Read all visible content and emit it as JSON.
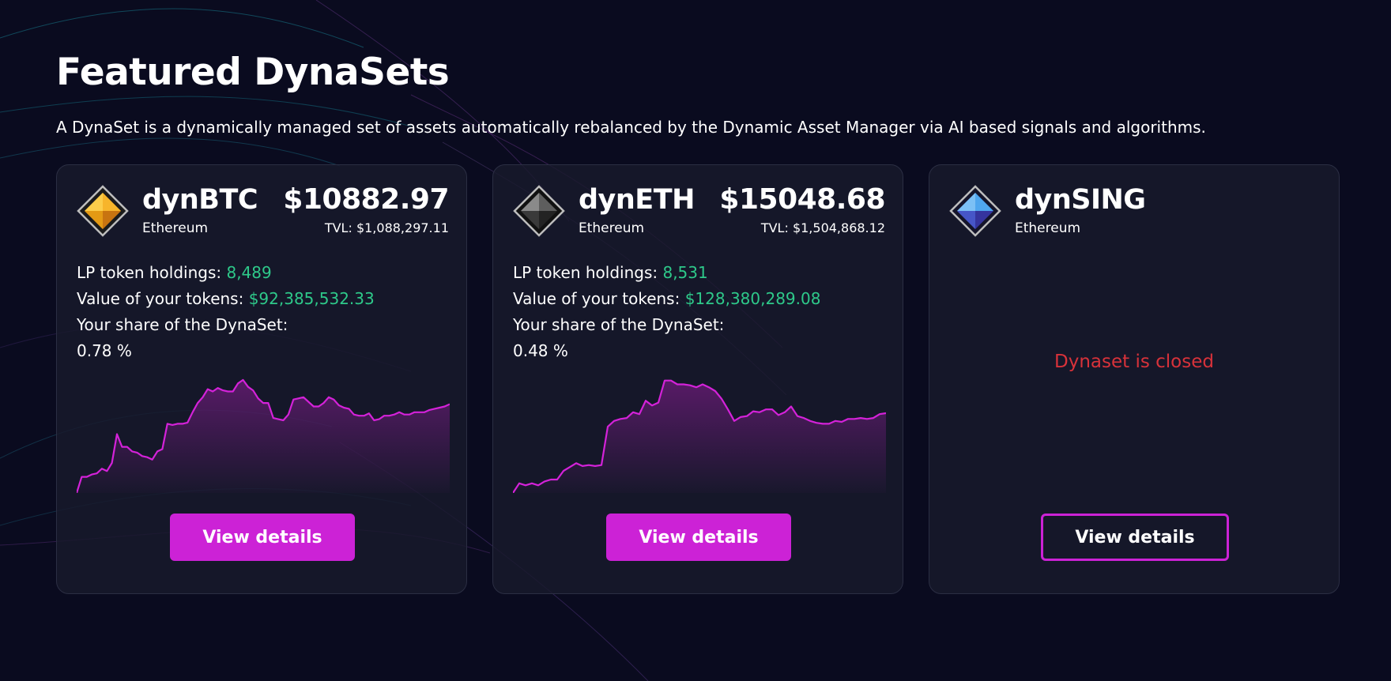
{
  "header": {
    "title": "Featured DynaSets",
    "subtitle": "A DynaSet is a dynamically managed set of assets automatically rebalanced by the Dynamic Asset Manager via AI based signals and algorithms."
  },
  "accent_color": "#cc22d6",
  "positive_color": "#2ec98a",
  "closed_color": "#d8323a",
  "cards": [
    {
      "name": "dynBTC",
      "network": "Ethereum",
      "price": "$10882.97",
      "tvl": "TVL: $1,088,297.11",
      "lp_label": "LP token holdings:",
      "lp_value": "8,489",
      "value_label": "Value of your tokens:",
      "value_value": "$92,385,532.33",
      "share_label": "Your share of the DynaSet:",
      "share_value": "0.78 %",
      "button_label": "View details",
      "icon": "gold-diamond-icon",
      "icon_colors": [
        "#f7b52b",
        "#e18a10"
      ]
    },
    {
      "name": "dynETH",
      "network": "Ethereum",
      "price": "$15048.68",
      "tvl": "TVL: $1,504,868.12",
      "lp_label": "LP token holdings:",
      "lp_value": "8,531",
      "value_label": "Value of your tokens:",
      "value_value": "$128,380,289.08",
      "share_label": "Your share of the DynaSet:",
      "share_value": "0.48 %",
      "button_label": "View details",
      "icon": "silver-diamond-icon",
      "icon_colors": [
        "#6d6d6d",
        "#2a2a2a"
      ]
    },
    {
      "name": "dynSING",
      "network": "Ethereum",
      "status": "Dynaset is closed",
      "button_label": "View details",
      "icon": "blue-diamond-icon",
      "icon_colors": [
        "#4fa6ee",
        "#3a3ab4"
      ]
    }
  ],
  "chart_data": [
    {
      "type": "area",
      "series_of": "dynBTC",
      "values": [
        0,
        14,
        14,
        16,
        17,
        21,
        19,
        26,
        51,
        40,
        40,
        36,
        35,
        32,
        31,
        29,
        36,
        38,
        60,
        59,
        60,
        60,
        61,
        70,
        78,
        83,
        90,
        88,
        91,
        89,
        88,
        88,
        95,
        98,
        92,
        89,
        82,
        78,
        78,
        65,
        64,
        63,
        68,
        81,
        82,
        83,
        79,
        75,
        75,
        78,
        83,
        81,
        76,
        74,
        73,
        68,
        67,
        67,
        69,
        63,
        64,
        67,
        67,
        68,
        70,
        68,
        68,
        70,
        70,
        70,
        72,
        73,
        74,
        75,
        77
      ],
      "ylim": [
        0,
        100
      ],
      "line_color": "#d422d9"
    },
    {
      "type": "area",
      "series_of": "dynETH",
      "values": [
        0,
        10,
        8,
        10,
        8,
        12,
        14,
        14,
        23,
        27,
        31,
        28,
        29,
        28,
        29,
        69,
        75,
        77,
        78,
        84,
        82,
        96,
        91,
        94,
        117,
        117,
        113,
        113,
        112,
        110,
        113,
        110,
        106,
        98,
        87,
        75,
        79,
        80,
        85,
        84,
        87,
        87,
        81,
        84,
        90,
        80,
        78,
        75,
        73,
        72,
        72,
        75,
        74,
        77,
        77,
        78,
        77,
        78,
        82,
        83
      ],
      "ylim": [
        0,
        120
      ],
      "line_color": "#d422d9"
    }
  ]
}
